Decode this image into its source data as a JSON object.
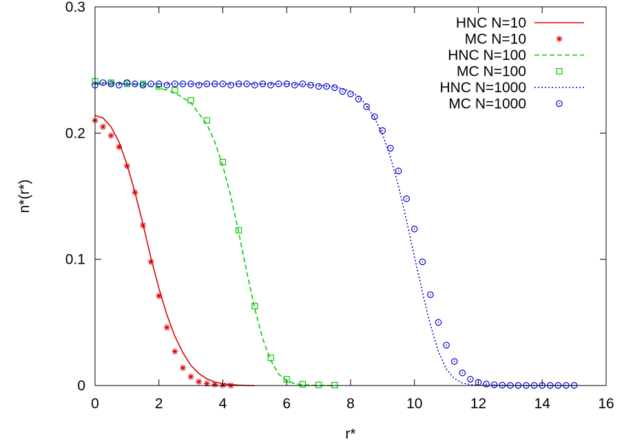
{
  "chart_data": {
    "type": "line",
    "title": "",
    "xlabel": "r*",
    "ylabel": "n*(r*)",
    "xlim": [
      0,
      16
    ],
    "ylim": [
      0,
      0.3
    ],
    "xticks": [
      0,
      2,
      4,
      6,
      8,
      10,
      12,
      14,
      16
    ],
    "xtick_labels": [
      "0",
      "2",
      "4",
      "6",
      "8",
      "10",
      "12",
      "14",
      "16"
    ],
    "yticks": [
      0,
      0.1,
      0.2,
      0.3
    ],
    "ytick_labels": [
      "0",
      "0.1",
      "0.2",
      "0.3"
    ],
    "grid": false,
    "legend_position": "top-right",
    "series": [
      {
        "name": "HNC N=10",
        "kind": "line",
        "style": "solid",
        "color": "#dd0000",
        "x": [
          0,
          0.25,
          0.5,
          0.75,
          1.0,
          1.25,
          1.5,
          1.75,
          2.0,
          2.25,
          2.5,
          2.75,
          3.0,
          3.25,
          3.5,
          3.75,
          4.0,
          4.25,
          4.5,
          4.75,
          5.0
        ],
        "y": [
          0.214,
          0.212,
          0.205,
          0.193,
          0.175,
          0.153,
          0.128,
          0.101,
          0.077,
          0.056,
          0.039,
          0.026,
          0.016,
          0.0095,
          0.0053,
          0.0028,
          0.0014,
          0.0007,
          0.0003,
          0.0001,
          0
        ]
      },
      {
        "name": "MC  N=10",
        "kind": "points",
        "marker": "asterisk",
        "color": "#dd0000",
        "x": [
          0,
          0.25,
          0.5,
          0.75,
          1.0,
          1.25,
          1.5,
          1.75,
          2.0,
          2.25,
          2.5,
          2.75,
          3.0,
          3.25,
          3.5,
          3.75,
          4.0,
          4.25
        ],
        "y": [
          0.21,
          0.205,
          0.198,
          0.189,
          0.174,
          0.153,
          0.127,
          0.098,
          0.071,
          0.046,
          0.027,
          0.014,
          0.007,
          0.003,
          0.0015,
          0.0008,
          0.0003,
          0.0001
        ]
      },
      {
        "name": "HNC N=100",
        "kind": "line",
        "style": "dashed",
        "color": "#00cc00",
        "x": [
          0,
          0.5,
          1.0,
          1.5,
          2.0,
          2.5,
          3.0,
          3.5,
          3.75,
          4.0,
          4.25,
          4.5,
          4.75,
          5.0,
          5.25,
          5.5,
          5.75,
          6.0,
          6.25,
          6.5,
          7.0,
          7.5
        ],
        "y": [
          0.24,
          0.24,
          0.239,
          0.238,
          0.236,
          0.232,
          0.224,
          0.207,
          0.193,
          0.174,
          0.15,
          0.121,
          0.09,
          0.061,
          0.037,
          0.02,
          0.009,
          0.004,
          0.0015,
          0.0005,
          0.0001,
          0
        ]
      },
      {
        "name": "MC  N=100",
        "kind": "points",
        "marker": "square",
        "color": "#00cc00",
        "x": [
          0,
          0.5,
          1.0,
          1.5,
          2.0,
          2.5,
          3.0,
          3.5,
          4.0,
          4.5,
          5.0,
          5.5,
          6.0,
          6.5,
          7.0,
          7.5
        ],
        "y": [
          0.241,
          0.24,
          0.239,
          0.239,
          0.237,
          0.234,
          0.226,
          0.21,
          0.177,
          0.123,
          0.063,
          0.022,
          0.005,
          0.001,
          0.0005,
          0.0003
        ]
      },
      {
        "name": "HNC N=1000",
        "kind": "line",
        "style": "dotted",
        "color": "#0000cc",
        "x": [
          0,
          1,
          2,
          3,
          4,
          5,
          6,
          7,
          7.5,
          8.0,
          8.25,
          8.5,
          8.75,
          9.0,
          9.25,
          9.5,
          9.75,
          10.0,
          10.25,
          10.5,
          10.75,
          11.0,
          11.25,
          11.5,
          11.75,
          12.0,
          13.0,
          15.0
        ],
        "y": [
          0.239,
          0.239,
          0.239,
          0.239,
          0.239,
          0.239,
          0.239,
          0.238,
          0.237,
          0.233,
          0.229,
          0.222,
          0.212,
          0.199,
          0.181,
          0.158,
          0.131,
          0.102,
          0.074,
          0.048,
          0.027,
          0.013,
          0.0055,
          0.002,
          0.0007,
          0.0002,
          0,
          0
        ]
      },
      {
        "name": "MC  N=1000",
        "kind": "points",
        "marker": "circle",
        "color": "#0000cc",
        "x": [
          0,
          0.25,
          0.5,
          0.75,
          1.0,
          1.25,
          1.5,
          1.75,
          2.0,
          2.25,
          2.5,
          2.75,
          3.0,
          3.25,
          3.5,
          3.75,
          4.0,
          4.25,
          4.5,
          4.75,
          5.0,
          5.25,
          5.5,
          5.75,
          6.0,
          6.25,
          6.5,
          6.75,
          7.0,
          7.25,
          7.5,
          7.75,
          8.0,
          8.25,
          8.5,
          8.75,
          9.0,
          9.25,
          9.5,
          9.75,
          10.0,
          10.25,
          10.5,
          10.75,
          11.0,
          11.25,
          11.5,
          11.75,
          12.0,
          12.25,
          12.5,
          12.75,
          13.0,
          13.25,
          13.5,
          13.75,
          14.0,
          14.25,
          14.5,
          14.75,
          15.0
        ],
        "y": [
          0.238,
          0.24,
          0.239,
          0.238,
          0.24,
          0.239,
          0.238,
          0.239,
          0.239,
          0.238,
          0.239,
          0.239,
          0.239,
          0.238,
          0.239,
          0.239,
          0.239,
          0.238,
          0.239,
          0.239,
          0.238,
          0.239,
          0.238,
          0.239,
          0.239,
          0.238,
          0.239,
          0.238,
          0.237,
          0.237,
          0.236,
          0.233,
          0.231,
          0.227,
          0.221,
          0.213,
          0.202,
          0.188,
          0.17,
          0.148,
          0.124,
          0.098,
          0.072,
          0.05,
          0.032,
          0.019,
          0.01,
          0.005,
          0.0025,
          0.0012,
          0.0006,
          0.0003,
          0.0001,
          0.0001,
          0.0001,
          0.0001,
          0.0001,
          0.0001,
          0.0001,
          0.0001,
          0.0001
        ]
      }
    ]
  }
}
